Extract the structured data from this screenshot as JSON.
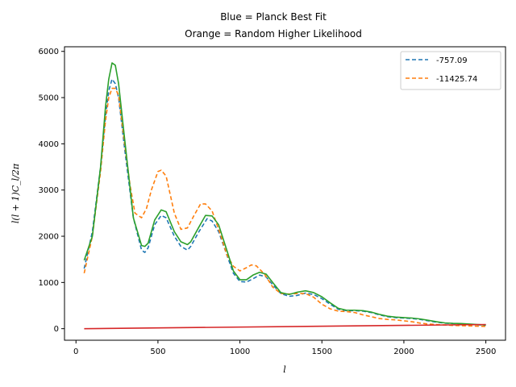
{
  "chart_data": {
    "type": "line",
    "title_line1": "Blue = Planck Best Fit",
    "title_line2": "Orange = Random Higher Likelihood",
    "xlabel": "l",
    "ylabel": "l(l + 1)C_l/2π",
    "xlim": [
      -70,
      2620
    ],
    "ylim": [
      -250,
      6100
    ],
    "xticks": [
      0,
      500,
      1000,
      1500,
      2000,
      2500
    ],
    "yticks": [
      0,
      1000,
      2000,
      3000,
      4000,
      5000,
      6000
    ],
    "legend_position": "top-right",
    "grid": false,
    "series": [
      {
        "name": "-757.09",
        "color": "#1f77b4",
        "dashed": true,
        "in_legend": true,
        "points": [
          [
            50,
            1300
          ],
          [
            100,
            2100
          ],
          [
            150,
            3500
          ],
          [
            180,
            4600
          ],
          [
            200,
            5150
          ],
          [
            220,
            5400
          ],
          [
            240,
            5300
          ],
          [
            260,
            5000
          ],
          [
            300,
            3800
          ],
          [
            350,
            2400
          ],
          [
            400,
            1700
          ],
          [
            420,
            1650
          ],
          [
            440,
            1750
          ],
          [
            480,
            2250
          ],
          [
            520,
            2450
          ],
          [
            550,
            2400
          ],
          [
            600,
            2000
          ],
          [
            640,
            1780
          ],
          [
            680,
            1700
          ],
          [
            700,
            1780
          ],
          [
            750,
            2100
          ],
          [
            800,
            2380
          ],
          [
            830,
            2330
          ],
          [
            870,
            2100
          ],
          [
            920,
            1600
          ],
          [
            960,
            1200
          ],
          [
            1000,
            1020
          ],
          [
            1040,
            1010
          ],
          [
            1080,
            1080
          ],
          [
            1120,
            1160
          ],
          [
            1160,
            1120
          ],
          [
            1200,
            950
          ],
          [
            1250,
            760
          ],
          [
            1300,
            700
          ],
          [
            1350,
            720
          ],
          [
            1400,
            770
          ],
          [
            1450,
            740
          ],
          [
            1500,
            650
          ],
          [
            1550,
            530
          ],
          [
            1600,
            420
          ],
          [
            1650,
            390
          ],
          [
            1700,
            390
          ],
          [
            1750,
            380
          ],
          [
            1800,
            350
          ],
          [
            1850,
            300
          ],
          [
            1900,
            260
          ],
          [
            1950,
            240
          ],
          [
            2000,
            230
          ],
          [
            2050,
            220
          ],
          [
            2100,
            200
          ],
          [
            2150,
            170
          ],
          [
            2200,
            140
          ],
          [
            2250,
            120
          ],
          [
            2300,
            110
          ],
          [
            2350,
            100
          ],
          [
            2400,
            95
          ],
          [
            2450,
            85
          ],
          [
            2500,
            75
          ]
        ]
      },
      {
        "name": "-11425.74",
        "color": "#ff7f0e",
        "dashed": true,
        "in_legend": true,
        "points": [
          [
            50,
            1200
          ],
          [
            100,
            2000
          ],
          [
            150,
            3400
          ],
          [
            180,
            4500
          ],
          [
            200,
            5000
          ],
          [
            220,
            5200
          ],
          [
            240,
            5200
          ],
          [
            260,
            5050
          ],
          [
            300,
            3900
          ],
          [
            330,
            3100
          ],
          [
            360,
            2500
          ],
          [
            400,
            2400
          ],
          [
            430,
            2600
          ],
          [
            460,
            3000
          ],
          [
            500,
            3400
          ],
          [
            520,
            3430
          ],
          [
            550,
            3300
          ],
          [
            600,
            2500
          ],
          [
            640,
            2150
          ],
          [
            680,
            2180
          ],
          [
            720,
            2450
          ],
          [
            760,
            2700
          ],
          [
            790,
            2700
          ],
          [
            830,
            2550
          ],
          [
            880,
            2050
          ],
          [
            920,
            1600
          ],
          [
            960,
            1350
          ],
          [
            1000,
            1250
          ],
          [
            1040,
            1320
          ],
          [
            1070,
            1380
          ],
          [
            1100,
            1360
          ],
          [
            1150,
            1180
          ],
          [
            1200,
            900
          ],
          [
            1250,
            760
          ],
          [
            1300,
            750
          ],
          [
            1350,
            760
          ],
          [
            1400,
            760
          ],
          [
            1450,
            680
          ],
          [
            1500,
            530
          ],
          [
            1550,
            430
          ],
          [
            1600,
            380
          ],
          [
            1650,
            370
          ],
          [
            1700,
            350
          ],
          [
            1750,
            300
          ],
          [
            1800,
            260
          ],
          [
            1850,
            220
          ],
          [
            1900,
            200
          ],
          [
            1950,
            190
          ],
          [
            2000,
            170
          ],
          [
            2050,
            150
          ],
          [
            2100,
            120
          ],
          [
            2150,
            100
          ],
          [
            2200,
            90
          ],
          [
            2250,
            80
          ],
          [
            2300,
            70
          ],
          [
            2350,
            65
          ],
          [
            2400,
            60
          ],
          [
            2450,
            55
          ],
          [
            2500,
            50
          ]
        ]
      },
      {
        "name": "",
        "color": "#2ca02c",
        "dashed": false,
        "in_legend": false,
        "points": [
          [
            50,
            1480
          ],
          [
            100,
            2000
          ],
          [
            150,
            3500
          ],
          [
            180,
            4800
          ],
          [
            200,
            5400
          ],
          [
            220,
            5750
          ],
          [
            240,
            5700
          ],
          [
            260,
            5300
          ],
          [
            300,
            4000
          ],
          [
            350,
            2400
          ],
          [
            400,
            1800
          ],
          [
            420,
            1780
          ],
          [
            440,
            1850
          ],
          [
            480,
            2350
          ],
          [
            520,
            2570
          ],
          [
            550,
            2530
          ],
          [
            600,
            2100
          ],
          [
            640,
            1880
          ],
          [
            680,
            1820
          ],
          [
            700,
            1880
          ],
          [
            750,
            2200
          ],
          [
            790,
            2450
          ],
          [
            830,
            2440
          ],
          [
            870,
            2250
          ],
          [
            920,
            1700
          ],
          [
            960,
            1250
          ],
          [
            1000,
            1060
          ],
          [
            1040,
            1060
          ],
          [
            1080,
            1160
          ],
          [
            1120,
            1220
          ],
          [
            1160,
            1180
          ],
          [
            1200,
            1000
          ],
          [
            1250,
            780
          ],
          [
            1300,
            740
          ],
          [
            1350,
            790
          ],
          [
            1400,
            820
          ],
          [
            1450,
            780
          ],
          [
            1500,
            690
          ],
          [
            1550,
            560
          ],
          [
            1600,
            440
          ],
          [
            1650,
            400
          ],
          [
            1700,
            400
          ],
          [
            1750,
            390
          ],
          [
            1800,
            360
          ],
          [
            1850,
            310
          ],
          [
            1900,
            270
          ],
          [
            1950,
            250
          ],
          [
            2000,
            240
          ],
          [
            2050,
            230
          ],
          [
            2100,
            210
          ],
          [
            2150,
            180
          ],
          [
            2200,
            150
          ],
          [
            2250,
            125
          ],
          [
            2300,
            115
          ],
          [
            2350,
            110
          ],
          [
            2400,
            100
          ],
          [
            2450,
            90
          ],
          [
            2500,
            80
          ]
        ]
      },
      {
        "name": "",
        "color": "#d62728",
        "dashed": false,
        "in_legend": false,
        "points": [
          [
            50,
            0
          ],
          [
            2500,
            90
          ]
        ]
      }
    ]
  }
}
